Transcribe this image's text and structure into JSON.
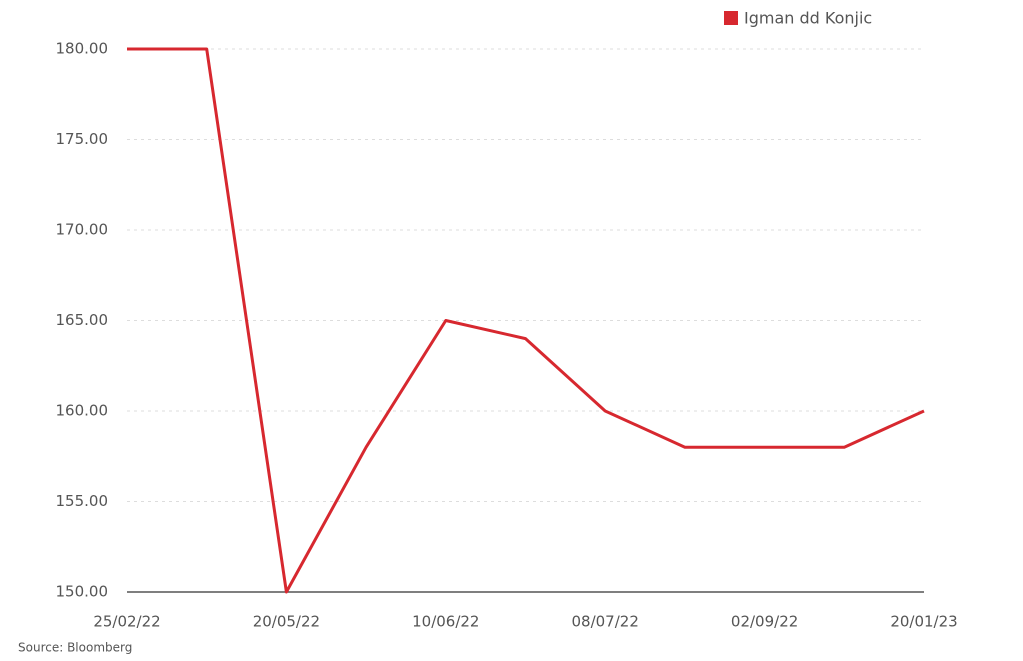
{
  "chart_data": {
    "type": "line",
    "categories": [
      "25/02/22",
      null,
      "20/05/22",
      null,
      "10/06/22",
      null,
      "08/07/22",
      null,
      "02/09/22",
      null,
      "20/01/23"
    ],
    "series": [
      {
        "name": "Igman dd Konjic",
        "color": "#d7282f",
        "values": [
          180,
          180,
          150,
          158,
          165,
          164,
          160,
          158,
          158,
          158,
          160
        ]
      }
    ],
    "ylim": [
      150,
      180
    ],
    "yticks": [
      {
        "value": 150,
        "label": "150.00"
      },
      {
        "value": 155,
        "label": "155.00"
      },
      {
        "value": 160,
        "label": "160.00"
      },
      {
        "value": 165,
        "label": "165.00"
      },
      {
        "value": 170,
        "label": "170.00"
      },
      {
        "value": 175,
        "label": "175.00"
      },
      {
        "value": 180,
        "label": "180.00"
      }
    ],
    "grid": true,
    "legend": "top-right",
    "source": "Source: Bloomberg"
  }
}
